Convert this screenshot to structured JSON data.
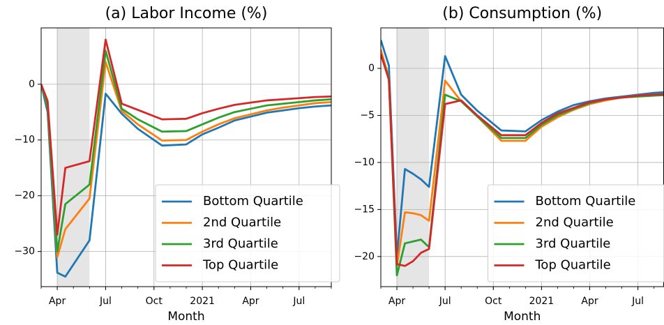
{
  "chart_data": [
    {
      "type": "line",
      "title": "(a) Labor Income (%)",
      "x_label": "Month",
      "x": [
        3,
        3.4,
        4,
        4.5,
        6,
        7,
        8,
        9,
        10.5,
        12,
        13,
        14,
        15,
        16,
        17,
        18,
        19,
        20,
        21
      ],
      "series": [
        {
          "name": "Bottom Quartile",
          "color": "#1f77b4",
          "values": [
            0,
            -5,
            -33.8,
            -34.5,
            -28,
            -1.7,
            -5.3,
            -8,
            -11,
            -10.8,
            -9,
            -7.8,
            -6.5,
            -5.8,
            -5.1,
            -4.7,
            -4.3,
            -4,
            -3.8
          ]
        },
        {
          "name": "2nd Quartile",
          "color": "#ff7f0e",
          "values": [
            0,
            -4,
            -31,
            -26,
            -20.5,
            4,
            -4.8,
            -7.2,
            -10.1,
            -10,
            -8.5,
            -7.2,
            -6.1,
            -5.4,
            -4.7,
            -4.2,
            -3.8,
            -3.4,
            -3.2
          ]
        },
        {
          "name": "3rd Quartile",
          "color": "#2ca02c",
          "values": [
            0,
            -4,
            -30,
            -21.5,
            -18,
            6,
            -4.4,
            -6.3,
            -8.5,
            -8.4,
            -7.2,
            -6,
            -5,
            -4.4,
            -3.8,
            -3.5,
            -3.2,
            -2.9,
            -2.7
          ]
        },
        {
          "name": "Top Quartile",
          "color": "#d62728",
          "values": [
            0,
            -3,
            -27,
            -15,
            -13.8,
            8,
            -3.5,
            -4.6,
            -6.3,
            -6.2,
            -5.2,
            -4.4,
            -3.7,
            -3.3,
            -2.9,
            -2.7,
            -2.5,
            -2.3,
            -2.2
          ]
        }
      ],
      "xlim": [
        3,
        21
      ],
      "ylim": [
        -36.3,
        10.1
      ],
      "xticks": [
        {
          "value": 4,
          "label": "Apr"
        },
        {
          "value": 7,
          "label": "Jul"
        },
        {
          "value": 10,
          "label": "Oct"
        },
        {
          "value": 13,
          "label": "2021"
        },
        {
          "value": 16,
          "label": "Apr"
        },
        {
          "value": 19,
          "label": "Jul"
        }
      ],
      "yticks": [
        {
          "value": -30,
          "label": "−30"
        },
        {
          "value": -20,
          "label": "−20"
        },
        {
          "value": -10,
          "label": "−10"
        },
        0
      ],
      "grid": true,
      "legend": "lower right",
      "shade": {
        "x": [
          4,
          6
        ],
        "color": "#e5e5e5"
      }
    },
    {
      "type": "line",
      "title": "(b) Consumption (%)",
      "x_label": "Month",
      "x": [
        3,
        3.5,
        4,
        4.5,
        5,
        5.5,
        6,
        7,
        8,
        9,
        10.5,
        12,
        13,
        14,
        15,
        16,
        17,
        18,
        19,
        20,
        21
      ],
      "series": [
        {
          "name": "Bottom Quartile",
          "color": "#1f77b4",
          "values": [
            3,
            0.3,
            -20,
            -10.7,
            -11.2,
            -11.8,
            -12.6,
            1.3,
            -2.8,
            -4.5,
            -6.6,
            -6.7,
            -5.5,
            -4.6,
            -3.9,
            -3.5,
            -3.2,
            -3,
            -2.8,
            -2.6,
            -2.5
          ]
        },
        {
          "name": "2nd Quartile",
          "color": "#ff7f0e",
          "values": [
            2,
            -1,
            -21,
            -15.3,
            -15.4,
            -15.6,
            -16.2,
            -1.3,
            -3.5,
            -5.1,
            -7.7,
            -7.7,
            -6.2,
            -5.2,
            -4.4,
            -3.8,
            -3.4,
            -3.1,
            -2.9,
            -2.8,
            -2.7
          ]
        },
        {
          "name": "3rd Quartile",
          "color": "#2ca02c",
          "values": [
            1.5,
            -1,
            -22,
            -18.6,
            -18.4,
            -18.2,
            -19,
            -2.8,
            -3.5,
            -5.1,
            -7.4,
            -7.4,
            -6,
            -5,
            -4.3,
            -3.7,
            -3.3,
            -3.1,
            -3,
            -2.9,
            -2.8
          ]
        },
        {
          "name": "Top Quartile",
          "color": "#d62728",
          "values": [
            1.5,
            -1.2,
            -20.8,
            -21,
            -20.5,
            -19.6,
            -19.2,
            -3.8,
            -3.4,
            -5,
            -7.1,
            -7.1,
            -5.8,
            -4.8,
            -4.2,
            -3.6,
            -3.3,
            -3.1,
            -2.9,
            -2.8,
            -2.7
          ]
        }
      ],
      "xlim": [
        3,
        20.6
      ],
      "ylim": [
        -23.2,
        4.3
      ],
      "xticks": [
        {
          "value": 4,
          "label": "Apr"
        },
        {
          "value": 7,
          "label": "Jul"
        },
        {
          "value": 10,
          "label": "Oct"
        },
        {
          "value": 13,
          "label": "2021"
        },
        {
          "value": 16,
          "label": "Apr"
        },
        {
          "value": 19,
          "label": "Jul"
        }
      ],
      "yticks": [
        {
          "value": -20,
          "label": "−20"
        },
        {
          "value": -15,
          "label": "−15"
        },
        {
          "value": -10,
          "label": "−10"
        },
        {
          "value": -5,
          "label": "−5"
        },
        0
      ],
      "grid": true,
      "legend": "lower right",
      "shade": {
        "x": [
          4,
          6
        ],
        "color": "#e5e5e5"
      }
    }
  ]
}
